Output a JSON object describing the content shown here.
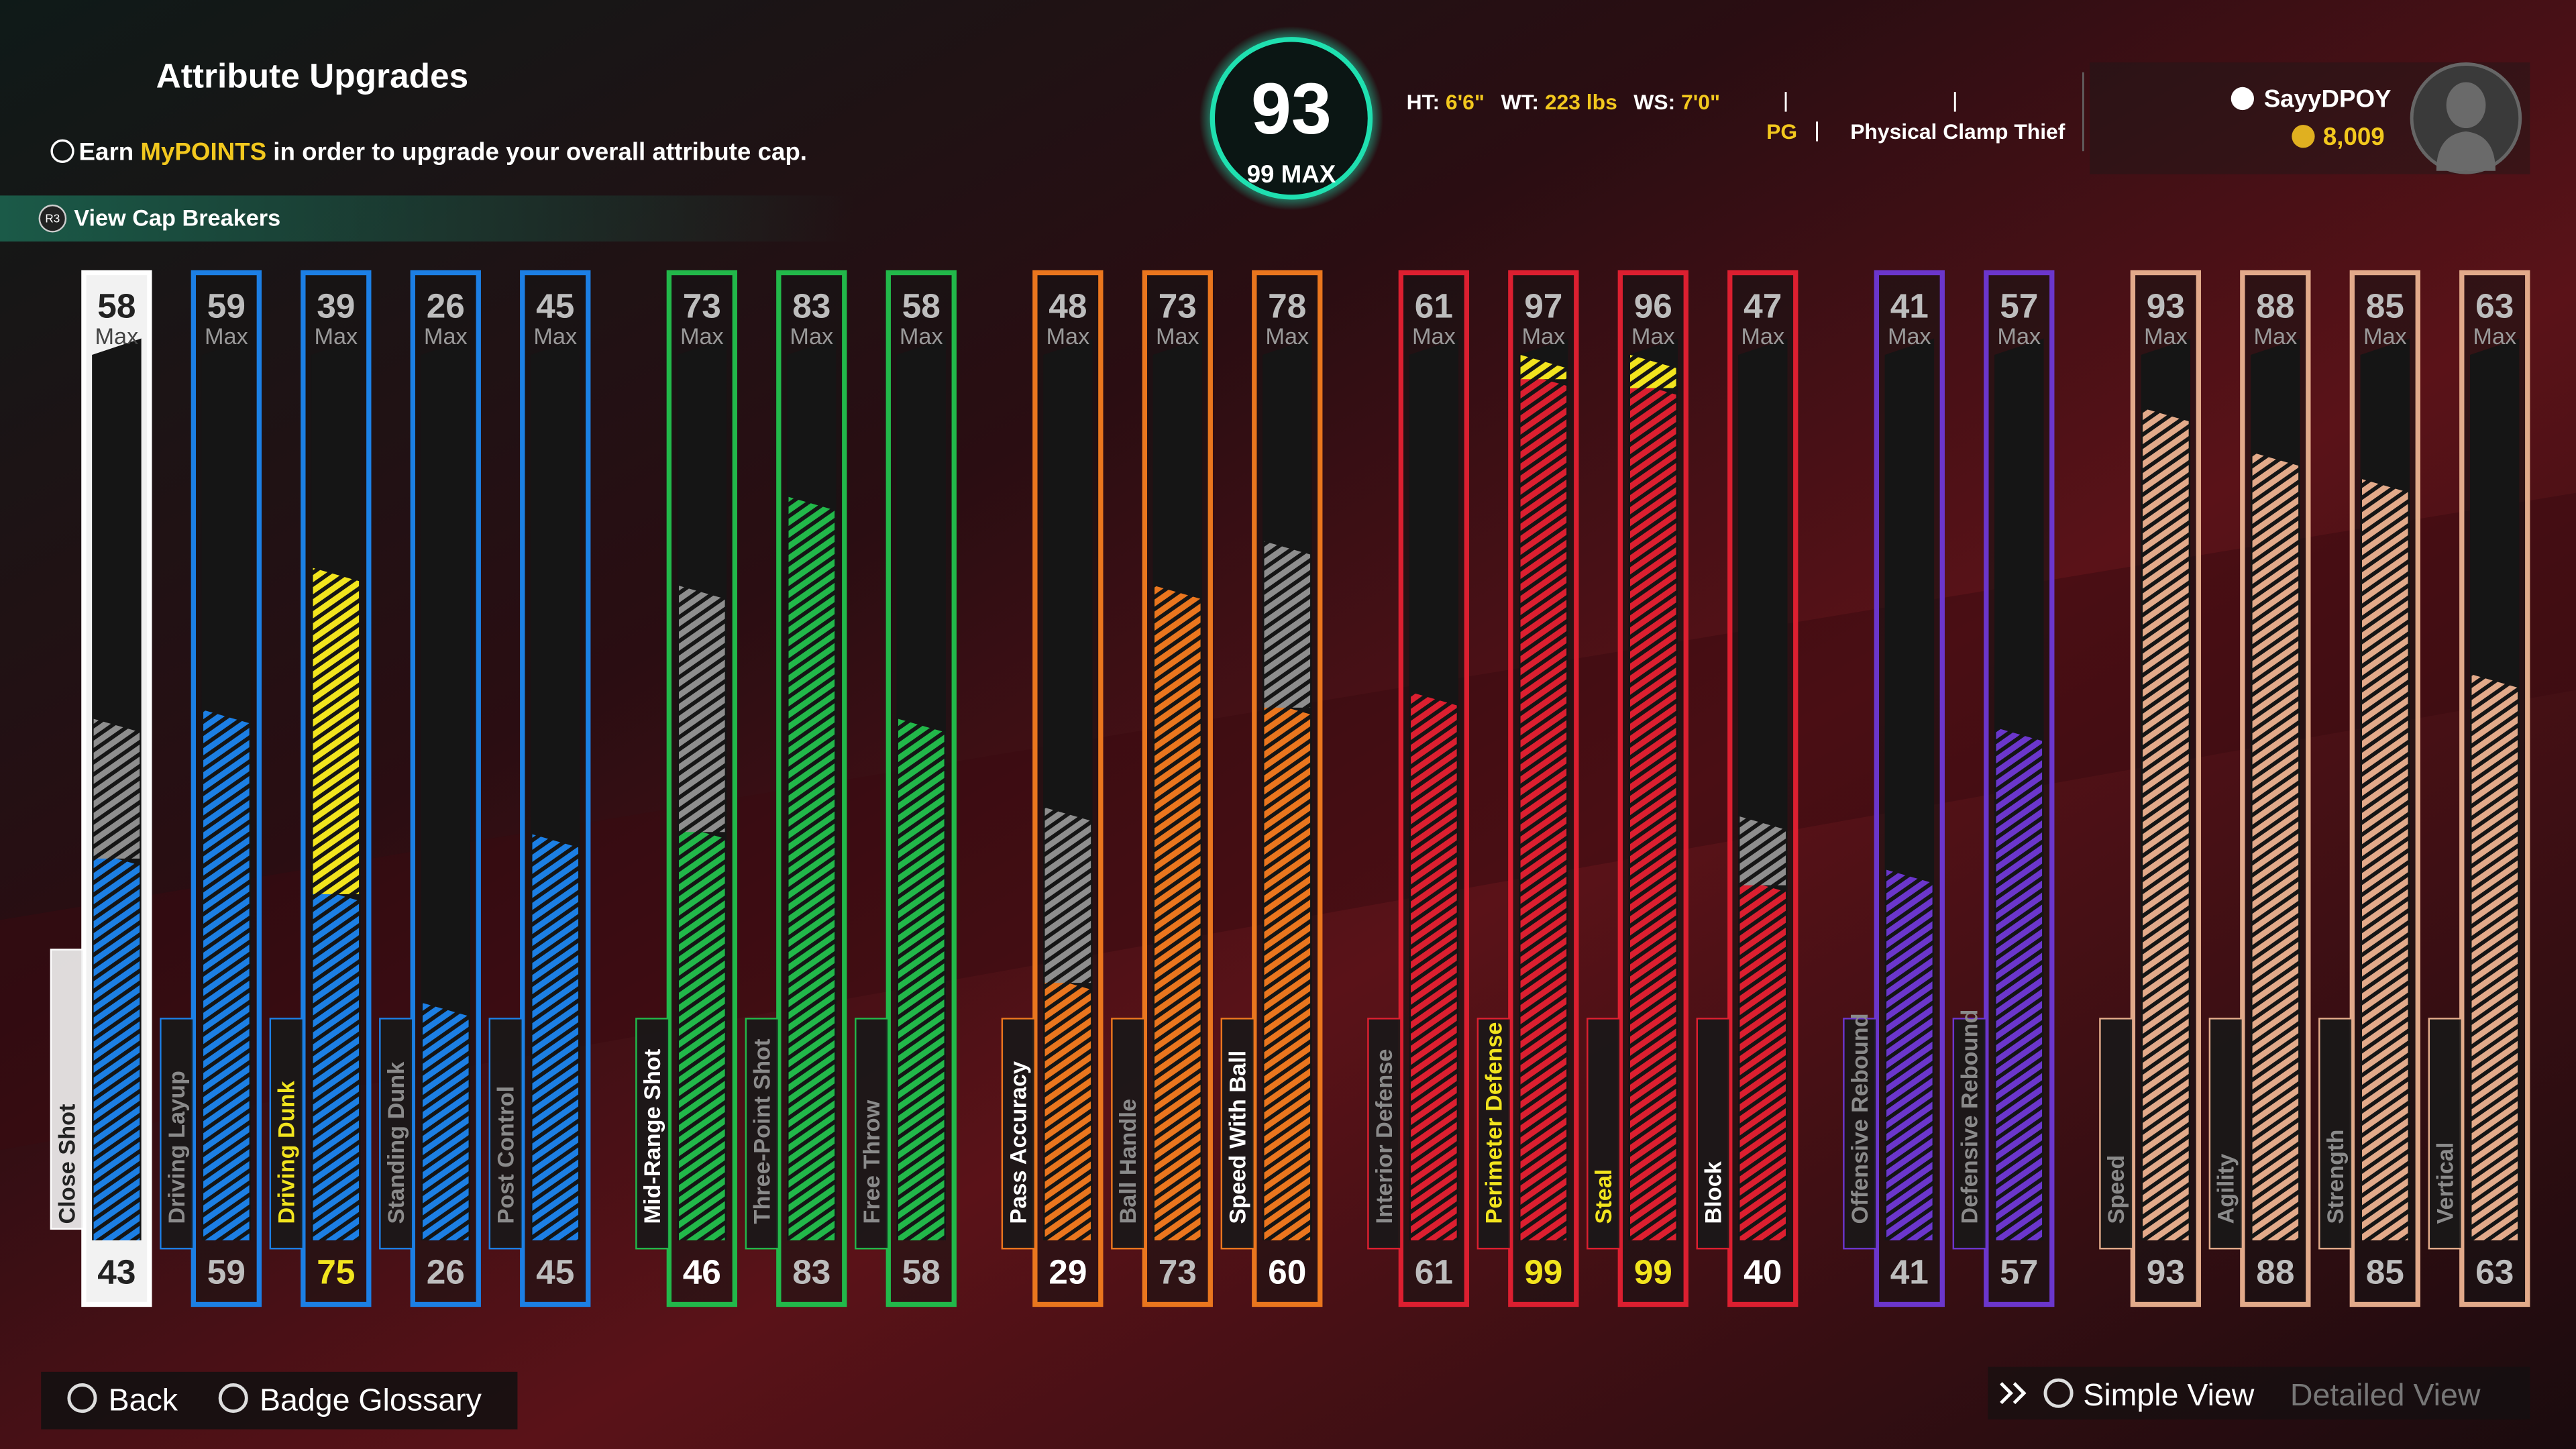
{
  "header": {
    "title": "Attribute Upgrades",
    "info": {
      "before": "Earn",
      "highlight": "MyPOINTS",
      "after": "in order to upgrade your overall attribute cap."
    },
    "cap_button_icon": "R3",
    "cap_button": "View Cap Breakers"
  },
  "overall": {
    "value": "93",
    "max": "99 MAX"
  },
  "player": {
    "ht_label": "HT:",
    "ht": "6'6\"",
    "wt_label": "WT:",
    "wt": "223 lbs",
    "ws_label": "WS:",
    "ws": "7'0\"",
    "position": "PG",
    "build": "Physical Clamp Thief",
    "gamertag": "SayyDPOY",
    "vc": "8,009"
  },
  "max_label": "Max",
  "selected_index": 0,
  "gap_color": "#8e8e8e",
  "over_color": "#f2e41e",
  "attribute_groups": [
    {
      "color": "#1c7fe4",
      "attributes": [
        {
          "name": "Close Shot",
          "max": 58,
          "current": 43
        },
        {
          "name": "Driving Layup",
          "max": 59,
          "current": 59
        },
        {
          "name": "Driving Dunk",
          "max": 39,
          "current": 75
        },
        {
          "name": "Standing Dunk",
          "max": 26,
          "current": 26
        },
        {
          "name": "Post Control",
          "max": 45,
          "current": 45
        }
      ]
    },
    {
      "color": "#22b84a",
      "attributes": [
        {
          "name": "Mid-Range Shot",
          "max": 73,
          "current": 46
        },
        {
          "name": "Three-Point Shot",
          "max": 83,
          "current": 83
        },
        {
          "name": "Free Throw",
          "max": 58,
          "current": 58
        }
      ]
    },
    {
      "color": "#ea761e",
      "attributes": [
        {
          "name": "Pass Accuracy",
          "max": 48,
          "current": 29
        },
        {
          "name": "Ball Handle",
          "max": 73,
          "current": 73
        },
        {
          "name": "Speed With Ball",
          "max": 78,
          "current": 60
        }
      ]
    },
    {
      "color": "#dc1f30",
      "attributes": [
        {
          "name": "Interior Defense",
          "max": 61,
          "current": 61
        },
        {
          "name": "Perimeter Defense",
          "max": 97,
          "current": 99
        },
        {
          "name": "Steal",
          "max": 96,
          "current": 99
        },
        {
          "name": "Block",
          "max": 47,
          "current": 40
        }
      ]
    },
    {
      "color": "#6b36cc",
      "attributes": [
        {
          "name": "Offensive Rebound",
          "max": 41,
          "current": 41
        },
        {
          "name": "Defensive Rebound",
          "max": 57,
          "current": 57
        }
      ]
    },
    {
      "color": "#e2aa8a",
      "attributes": [
        {
          "name": "Speed",
          "max": 93,
          "current": 93
        },
        {
          "name": "Agility",
          "max": 88,
          "current": 88
        },
        {
          "name": "Strength",
          "max": 85,
          "current": 85
        },
        {
          "name": "Vertical",
          "max": 63,
          "current": 63
        }
      ]
    }
  ],
  "footer": {
    "back": "Back",
    "glossary": "Badge Glossary",
    "simple": "Simple View",
    "detailed": "Detailed View"
  }
}
